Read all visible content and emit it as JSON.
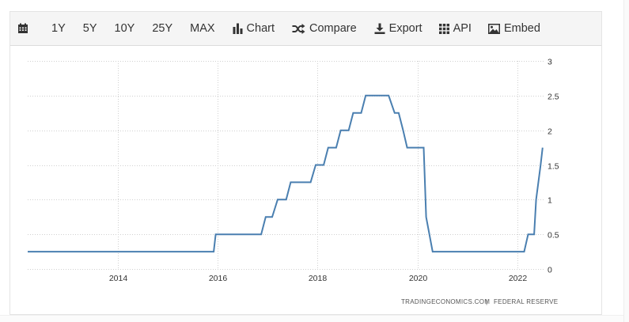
{
  "toolbar": {
    "items": [
      {
        "label": "",
        "icon": "calendar-icon"
      },
      {
        "label": "1Y",
        "icon": ""
      },
      {
        "label": "5Y",
        "icon": ""
      },
      {
        "label": "10Y",
        "icon": ""
      },
      {
        "label": "25Y",
        "icon": ""
      },
      {
        "label": "MAX",
        "icon": ""
      },
      {
        "label": "Chart",
        "icon": "bar-chart-icon"
      },
      {
        "label": "Compare",
        "icon": "shuffle-icon"
      },
      {
        "label": "Export",
        "icon": "download-icon"
      },
      {
        "label": "API",
        "icon": "grid-icon"
      },
      {
        "label": "Embed",
        "icon": "image-icon"
      }
    ]
  },
  "credits": {
    "source": "TRADINGECONOMICS.COM",
    "separator": "|",
    "publisher": "FEDERAL RESERVE"
  },
  "colors": {
    "line": "#4a7fb0",
    "grid": "#d0d0d0",
    "toolbar_bg": "#f5f5f5",
    "text": "#333333"
  },
  "chart_data": {
    "type": "line",
    "title": "",
    "xlabel": "",
    "ylabel": "",
    "grid": true,
    "legend": "none",
    "y_axis_side": "right",
    "xlim": [
      2012.2,
      2022.55
    ],
    "ylim": [
      0,
      3
    ],
    "x_ticks": [
      2014,
      2016,
      2018,
      2020,
      2022
    ],
    "x_tick_labels": [
      "2014",
      "2016",
      "2018",
      "2020",
      "2022"
    ],
    "y_ticks": [
      0,
      0.5,
      1,
      1.5,
      2,
      2.5,
      3
    ],
    "y_tick_labels": [
      "0",
      "0.5",
      "1",
      "1.5",
      "2",
      "2.5",
      "3"
    ],
    "series": [
      {
        "name": "",
        "x": [
          2012.2,
          2015.92,
          2015.96,
          2016.87,
          2016.96,
          2017.09,
          2017.2,
          2017.37,
          2017.46,
          2017.86,
          2017.96,
          2018.12,
          2018.21,
          2018.37,
          2018.46,
          2018.62,
          2018.71,
          2018.87,
          2018.96,
          2019.42,
          2019.54,
          2019.62,
          2019.71,
          2019.79,
          2019.87,
          2020.12,
          2020.17,
          2020.3,
          2022.13,
          2022.21,
          2022.33,
          2022.37,
          2022.46,
          2022.5
        ],
        "y": [
          0.25,
          0.25,
          0.5,
          0.5,
          0.75,
          0.75,
          1.0,
          1.0,
          1.25,
          1.25,
          1.5,
          1.5,
          1.75,
          1.75,
          2.0,
          2.0,
          2.25,
          2.25,
          2.5,
          2.5,
          2.25,
          2.25,
          2.0,
          1.75,
          1.75,
          1.75,
          0.75,
          0.25,
          0.25,
          0.5,
          0.5,
          1.0,
          1.5,
          1.75
        ]
      }
    ]
  }
}
